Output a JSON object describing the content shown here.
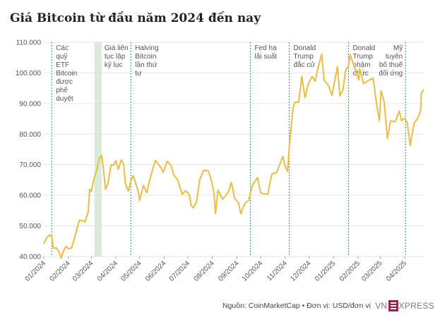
{
  "title": "Giá Bitcoin từ đầu năm 2024 đến nay",
  "footer": {
    "source": "Nguồn: CoinMarketCap • Đơn vị: USD/đơn vị",
    "logo_text": "VNEXPRESS"
  },
  "colors": {
    "line": "#e9bd45",
    "event_line": "#2e9e48",
    "highlight": "#c9e4c9",
    "grid": "#e6e6e6"
  },
  "chart_data": {
    "type": "line",
    "title": "Giá Bitcoin từ đầu năm 2024 đến nay",
    "xlabel": "",
    "ylabel": "",
    "ylim": [
      40000,
      110000
    ],
    "yticks": [
      40000,
      50000,
      60000,
      70000,
      80000,
      90000,
      100000,
      110000
    ],
    "ytick_labels": [
      "40.000",
      "50.000",
      "60.000",
      "70.000",
      "80.000",
      "90.000",
      "100.000",
      "110.000"
    ],
    "x_range": [
      "2024-01-01",
      "2025-04-25"
    ],
    "xticks": [
      "2024-01-01",
      "2024-02-01",
      "2024-03-01",
      "2024-04-01",
      "2024-05-01",
      "2024-06-01",
      "2024-07-01",
      "2024-08-01",
      "2024-09-01",
      "2024-10-01",
      "2024-11-01",
      "2024-12-01",
      "2025-01-01",
      "2025-02-01",
      "2025-03-01",
      "2025-04-01"
    ],
    "xtick_labels": [
      "01/2024",
      "02/2024",
      "03/2024",
      "04/2024",
      "05/2024",
      "06/2024",
      "07/2024",
      "08/2024",
      "09/2024",
      "10/2024",
      "11/2024",
      "12/2024",
      "01/2025",
      "02/2025",
      "03/2025",
      "04/2025"
    ],
    "grid": "horizontal",
    "series": [
      {
        "name": "",
        "points": [
          [
            "2024-01-01",
            44200
          ],
          [
            "2024-01-04",
            45800
          ],
          [
            "2024-01-08",
            47000
          ],
          [
            "2024-01-11",
            46500
          ],
          [
            "2024-01-13",
            42700
          ],
          [
            "2024-01-17",
            42800
          ],
          [
            "2024-01-20",
            41600
          ],
          [
            "2024-01-23",
            39500
          ],
          [
            "2024-01-26",
            41800
          ],
          [
            "2024-01-29",
            43300
          ],
          [
            "2024-02-01",
            42600
          ],
          [
            "2024-02-05",
            42700
          ],
          [
            "2024-02-08",
            45200
          ],
          [
            "2024-02-11",
            48300
          ],
          [
            "2024-02-15",
            51900
          ],
          [
            "2024-02-19",
            51700
          ],
          [
            "2024-02-22",
            51300
          ],
          [
            "2024-02-26",
            54500
          ],
          [
            "2024-02-28",
            62000
          ],
          [
            "2024-03-01",
            61200
          ],
          [
            "2024-03-05",
            66000
          ],
          [
            "2024-03-08",
            68300
          ],
          [
            "2024-03-11",
            72100
          ],
          [
            "2024-03-14",
            73100
          ],
          [
            "2024-03-16",
            69400
          ],
          [
            "2024-03-19",
            62000
          ],
          [
            "2024-03-22",
            63800
          ],
          [
            "2024-03-26",
            70000
          ],
          [
            "2024-03-29",
            69800
          ],
          [
            "2024-04-01",
            71300
          ],
          [
            "2024-04-04",
            68500
          ],
          [
            "2024-04-08",
            71600
          ],
          [
            "2024-04-11",
            70000
          ],
          [
            "2024-04-13",
            63900
          ],
          [
            "2024-04-17",
            61300
          ],
          [
            "2024-04-20",
            64900
          ],
          [
            "2024-04-23",
            66400
          ],
          [
            "2024-04-26",
            64000
          ],
          [
            "2024-04-30",
            60600
          ],
          [
            "2024-05-01",
            58300
          ],
          [
            "2024-05-06",
            63200
          ],
          [
            "2024-05-10",
            60800
          ],
          [
            "2024-05-15",
            66200
          ],
          [
            "2024-05-21",
            71400
          ],
          [
            "2024-05-27",
            69400
          ],
          [
            "2024-05-31",
            67500
          ],
          [
            "2024-06-05",
            71100
          ],
          [
            "2024-06-10",
            69600
          ],
          [
            "2024-06-13",
            66700
          ],
          [
            "2024-06-18",
            65100
          ],
          [
            "2024-06-24",
            60300
          ],
          [
            "2024-06-28",
            61500
          ],
          [
            "2024-07-03",
            60200
          ],
          [
            "2024-07-05",
            56700
          ],
          [
            "2024-07-08",
            55900
          ],
          [
            "2024-07-12",
            57900
          ],
          [
            "2024-07-16",
            65100
          ],
          [
            "2024-07-21",
            68200
          ],
          [
            "2024-07-27",
            67900
          ],
          [
            "2024-07-31",
            64600
          ],
          [
            "2024-08-03",
            60700
          ],
          [
            "2024-08-05",
            54000
          ],
          [
            "2024-08-08",
            61700
          ],
          [
            "2024-08-14",
            58700
          ],
          [
            "2024-08-21",
            61100
          ],
          [
            "2024-08-25",
            64200
          ],
          [
            "2024-08-29",
            59000
          ],
          [
            "2024-09-03",
            57500
          ],
          [
            "2024-09-06",
            53900
          ],
          [
            "2024-09-11",
            57400
          ],
          [
            "2024-09-16",
            58300
          ],
          [
            "2024-09-20",
            63000
          ],
          [
            "2024-09-27",
            65800
          ],
          [
            "2024-10-01",
            60800
          ],
          [
            "2024-10-03",
            60600
          ],
          [
            "2024-10-10",
            60300
          ],
          [
            "2024-10-15",
            66900
          ],
          [
            "2024-10-21",
            67400
          ],
          [
            "2024-10-29",
            72700
          ],
          [
            "2024-11-01",
            69400
          ],
          [
            "2024-11-04",
            67800
          ],
          [
            "2024-11-06",
            75600
          ],
          [
            "2024-11-11",
            88700
          ],
          [
            "2024-11-13",
            90400
          ],
          [
            "2024-11-18",
            90500
          ],
          [
            "2024-11-22",
            98900
          ],
          [
            "2024-11-26",
            91900
          ],
          [
            "2024-11-30",
            96400
          ],
          [
            "2024-12-05",
            98800
          ],
          [
            "2024-12-09",
            97300
          ],
          [
            "2024-12-12",
            101200
          ],
          [
            "2024-12-17",
            106100
          ],
          [
            "2024-12-20",
            97700
          ],
          [
            "2024-12-26",
            95700
          ],
          [
            "2024-12-30",
            92600
          ],
          [
            "2025-01-06",
            102000
          ],
          [
            "2025-01-09",
            92500
          ],
          [
            "2025-01-13",
            94500
          ],
          [
            "2025-01-16",
            100500
          ],
          [
            "2025-01-20",
            102300
          ],
          [
            "2025-01-22",
            106000
          ],
          [
            "2025-01-27",
            102100
          ],
          [
            "2025-02-02",
            97700
          ],
          [
            "2025-02-03",
            101400
          ],
          [
            "2025-02-08",
            96500
          ],
          [
            "2025-02-14",
            97500
          ],
          [
            "2025-02-20",
            98300
          ],
          [
            "2025-02-25",
            88700
          ],
          [
            "2025-02-28",
            84400
          ],
          [
            "2025-03-02",
            94200
          ],
          [
            "2025-03-06",
            90600
          ],
          [
            "2025-03-10",
            78600
          ],
          [
            "2025-03-14",
            84300
          ],
          [
            "2025-03-20",
            84100
          ],
          [
            "2025-03-25",
            87500
          ],
          [
            "2025-03-28",
            84400
          ],
          [
            "2025-04-01",
            85200
          ],
          [
            "2025-04-04",
            83800
          ],
          [
            "2025-04-08",
            76300
          ],
          [
            "2025-04-10",
            79600
          ],
          [
            "2025-04-13",
            83700
          ],
          [
            "2025-04-17",
            84900
          ],
          [
            "2025-04-21",
            87500
          ],
          [
            "2025-04-22",
            93400
          ],
          [
            "2025-04-25",
            94600
          ]
        ]
      }
    ],
    "events": [
      {
        "date": "2024-01-11",
        "lines": [
          "Các",
          "quỹ",
          "ETF",
          "Bitcoin",
          "được",
          "phê",
          "duyệt"
        ]
      },
      {
        "date": "2024-04-20",
        "lines": [
          "Halving",
          "Bitcoin",
          "lần thứ",
          "tư"
        ]
      },
      {
        "date": "2024-09-18",
        "lines": [
          "Fed hạ",
          "lãi suất"
        ]
      },
      {
        "date": "2024-11-06",
        "lines": [
          "Donald",
          "Trump",
          "đắc cử"
        ]
      },
      {
        "date": "2025-01-20",
        "lines": [
          "Donald",
          "Trump",
          "nhậm",
          "chức"
        ]
      },
      {
        "date": "2025-04-02",
        "lines": [
          "Mỹ",
          "tuyên",
          "bố thuế",
          "đối ứng"
        ],
        "align": "right"
      }
    ],
    "highlight_periods": [
      {
        "start": "2024-03-05",
        "end": "2024-03-14",
        "lines": [
          "Giá liên",
          "tục lập",
          "kỷ lục"
        ]
      }
    ]
  }
}
